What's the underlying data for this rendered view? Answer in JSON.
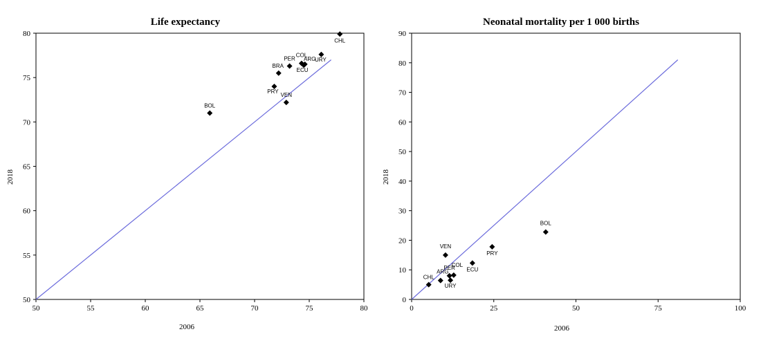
{
  "chart_data": [
    {
      "type": "scatter",
      "title": "Life expectancy",
      "xlabel": "2006",
      "ylabel": "2018",
      "xlim": [
        50,
        80
      ],
      "ylim": [
        50,
        80
      ],
      "xticks": [
        "50",
        "55",
        "60",
        "65",
        "70",
        "75",
        "80"
      ],
      "yticks": [
        "50",
        "55",
        "60",
        "65",
        "70",
        "75",
        "80"
      ],
      "reference_line": {
        "from": [
          50,
          50
        ],
        "to": [
          77,
          77
        ],
        "color": "#6b6bdc"
      },
      "marker_color": "#000000",
      "points": [
        {
          "label": "BOL",
          "x": 65.9,
          "y": 71.0
        },
        {
          "label": "PRY",
          "x": 71.8,
          "y": 74.0
        },
        {
          "label": "VEN",
          "x": 72.9,
          "y": 72.2
        },
        {
          "label": "BRA",
          "x": 72.2,
          "y": 75.5
        },
        {
          "label": "PER",
          "x": 73.2,
          "y": 76.3
        },
        {
          "label": "COL",
          "x": 74.3,
          "y": 76.6
        },
        {
          "label": "ARG",
          "x": 74.6,
          "y": 76.5
        },
        {
          "label": "ECU",
          "x": 74.5,
          "y": 76.4
        },
        {
          "label": "URY",
          "x": 76.1,
          "y": 77.6
        },
        {
          "label": "CHL",
          "x": 77.8,
          "y": 79.9
        }
      ]
    },
    {
      "type": "scatter",
      "title": "Neonatal mortality per 1 000 births",
      "xlabel": "2006",
      "ylabel": "2018",
      "xlim": [
        0,
        100
      ],
      "ylim": [
        0,
        90
      ],
      "xticks": [
        "0",
        "25",
        "50",
        "75",
        "100"
      ],
      "yticks": [
        "0",
        "10",
        "20",
        "30",
        "40",
        "50",
        "60",
        "70",
        "80",
        "90"
      ],
      "reference_line": {
        "from": [
          0,
          0
        ],
        "to": [
          81,
          81
        ],
        "color": "#6b6bdc"
      },
      "marker_color": "#000000",
      "points": [
        {
          "label": "CHL",
          "x": 5.2,
          "y": 5.0
        },
        {
          "label": "ARG",
          "x": 8.8,
          "y": 6.4
        },
        {
          "label": "PER",
          "x": 11.5,
          "y": 8.0
        },
        {
          "label": "COL",
          "x": 12.8,
          "y": 8.2
        },
        {
          "label": "URY",
          "x": 11.8,
          "y": 6.5
        },
        {
          "label": "VEN",
          "x": 10.3,
          "y": 15.0
        },
        {
          "label": "ECU",
          "x": 18.5,
          "y": 12.3
        },
        {
          "label": "PRY",
          "x": 24.5,
          "y": 17.8
        },
        {
          "label": "BOL",
          "x": 40.8,
          "y": 22.8
        }
      ]
    }
  ]
}
